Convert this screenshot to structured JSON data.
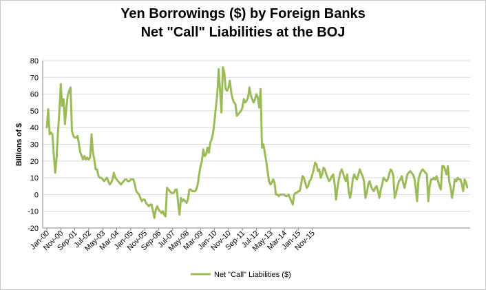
{
  "chart_data": {
    "type": "line",
    "title": "Yen Borrowings ($) by Foreign Banks",
    "subtitle": "Net \"Call\" Liabilities at the BOJ",
    "xlabel": "",
    "ylabel": "Billions of $",
    "ylim": [
      -20,
      80
    ],
    "yticks": [
      -20,
      -10,
      0,
      10,
      20,
      30,
      40,
      50,
      60,
      70,
      80
    ],
    "xtick_labels": [
      "Jan-00",
      "Nov-00",
      "Sep-01",
      "Jul-02",
      "May-03",
      "Mar-04",
      "Jan-05",
      "Nov-05",
      "Sep-06",
      "Jul-07",
      "May-08",
      "Mar-09",
      "Jan-10",
      "Nov-10",
      "Sep-11",
      "Jul-12",
      "May-13",
      "Mar-14",
      "Jan-15",
      "Nov-15"
    ],
    "grid": "horizontal",
    "legend_position": "bottom",
    "series": [
      {
        "name": "Net \"Call\" Liabilities ($)",
        "color": "#9bbb59",
        "start": "2000-01",
        "frequency": "monthly",
        "values": [
          40,
          51,
          36,
          37,
          36,
          24,
          13,
          22,
          37,
          50,
          66,
          53,
          57,
          42,
          52,
          59,
          62,
          64,
          38,
          35,
          34,
          34,
          35,
          30,
          25,
          23,
          21,
          23,
          21,
          22,
          21,
          22,
          36,
          25,
          21,
          15,
          15,
          11,
          10,
          10,
          9,
          8,
          9,
          10,
          8,
          6,
          7,
          9,
          13,
          10,
          9,
          8,
          7,
          6,
          7,
          8,
          9,
          9,
          8,
          8,
          9,
          9,
          9,
          6,
          2,
          1,
          0,
          -2,
          -4,
          -3,
          -3,
          -5,
          -6,
          -7,
          -6,
          -6,
          -10,
          -14,
          -9,
          -7,
          -9,
          -10,
          -11,
          -10,
          -12,
          -13,
          4,
          3,
          2,
          1,
          1,
          1,
          3,
          3,
          -5,
          -12,
          -2,
          -4,
          -3,
          -4,
          -5,
          -3,
          3,
          3,
          2,
          2,
          2,
          3,
          6,
          12,
          17,
          20,
          27,
          23,
          24,
          28,
          25,
          31,
          33,
          37,
          44,
          52,
          60,
          75,
          62,
          49,
          76,
          73,
          63,
          62,
          64,
          68,
          61,
          57,
          55,
          54,
          47,
          48,
          49,
          50,
          52,
          57,
          55,
          56,
          58,
          64,
          59,
          57,
          55,
          57,
          60,
          58,
          52,
          63,
          28,
          30,
          25,
          20,
          14,
          8,
          6,
          7,
          9,
          7,
          0,
          0,
          -1,
          0,
          0,
          0,
          0,
          -1,
          -1,
          0,
          -2,
          -4,
          -6,
          0,
          1,
          1,
          2,
          2,
          6,
          11,
          10,
          7,
          4,
          5,
          8,
          9,
          12,
          15,
          19,
          18,
          14,
          15,
          10,
          12,
          16,
          15,
          12,
          10,
          8,
          9,
          11,
          12,
          6,
          -3,
          4,
          9,
          13,
          15,
          13,
          10,
          8,
          12,
          2,
          -2,
          2,
          9,
          12,
          10,
          9,
          12,
          15,
          13,
          11,
          8,
          -2,
          1,
          6,
          8,
          5,
          3,
          2,
          4,
          5,
          2,
          -2,
          3,
          6,
          10,
          9,
          8,
          9,
          12,
          15,
          14,
          11,
          -2,
          1,
          5,
          8,
          9,
          11,
          7,
          4,
          8,
          12,
          13,
          14,
          13,
          12,
          10,
          4,
          -4,
          9,
          12,
          14,
          15,
          14,
          13,
          12,
          -4,
          5,
          9,
          9,
          10,
          9,
          11,
          8,
          5,
          3,
          17,
          17,
          15,
          12,
          17,
          8,
          4,
          -2,
          3,
          9,
          8,
          10,
          9,
          9,
          6,
          2,
          9,
          7,
          4
        ]
      }
    ]
  }
}
